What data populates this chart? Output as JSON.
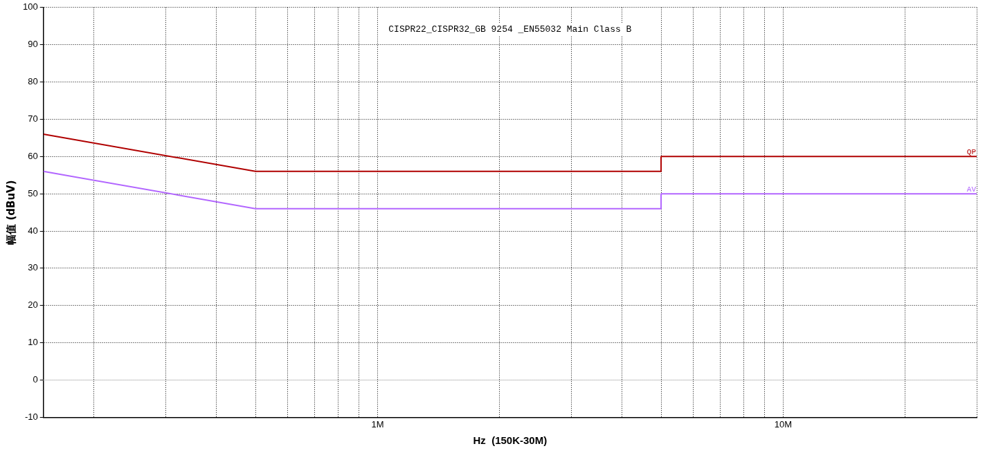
{
  "chart_data": {
    "type": "line",
    "title": "CISPR22_CISPR32_GB 9254 _EN55032 Main Class B",
    "xlabel": "Hz  (150K-30M)",
    "ylabel": "幅值 (dBuV)",
    "log": "x",
    "xlim": [
      150000,
      30000000
    ],
    "xticks": [
      {
        "value": 200000,
        "label": null
      },
      {
        "value": 300000,
        "label": null
      },
      {
        "value": 400000,
        "label": null
      },
      {
        "value": 500000,
        "label": null
      },
      {
        "value": 600000,
        "label": null
      },
      {
        "value": 700000,
        "label": null
      },
      {
        "value": 800000,
        "label": null
      },
      {
        "value": 900000,
        "label": null
      },
      {
        "value": 1000000,
        "label": "1M"
      },
      {
        "value": 2000000,
        "label": null
      },
      {
        "value": 3000000,
        "label": null
      },
      {
        "value": 4000000,
        "label": null
      },
      {
        "value": 5000000,
        "label": null
      },
      {
        "value": 6000000,
        "label": null
      },
      {
        "value": 7000000,
        "label": null
      },
      {
        "value": 8000000,
        "label": null
      },
      {
        "value": 9000000,
        "label": null
      },
      {
        "value": 10000000,
        "label": "10M"
      },
      {
        "value": 20000000,
        "label": null
      },
      {
        "value": 30000000,
        "label": null
      }
    ],
    "ylim": [
      -10,
      100
    ],
    "yticks": [
      -10,
      0,
      10,
      20,
      30,
      40,
      50,
      60,
      70,
      80,
      90,
      100
    ],
    "grid": true,
    "legend": false,
    "ref_lines": [
      {
        "axis": "y",
        "value": 0,
        "color": "#c8c8c8"
      }
    ],
    "series": [
      {
        "name": "QP",
        "color": "#b00000",
        "x": [
          150000,
          500000,
          5000000,
          5000000,
          30000000
        ],
        "values": [
          66,
          56,
          56,
          60,
          60
        ]
      },
      {
        "name": "AV",
        "color": "#b266ff",
        "x": [
          150000,
          500000,
          5000000,
          5000000,
          30000000
        ],
        "values": [
          56,
          46,
          46,
          50,
          50
        ]
      }
    ]
  }
}
